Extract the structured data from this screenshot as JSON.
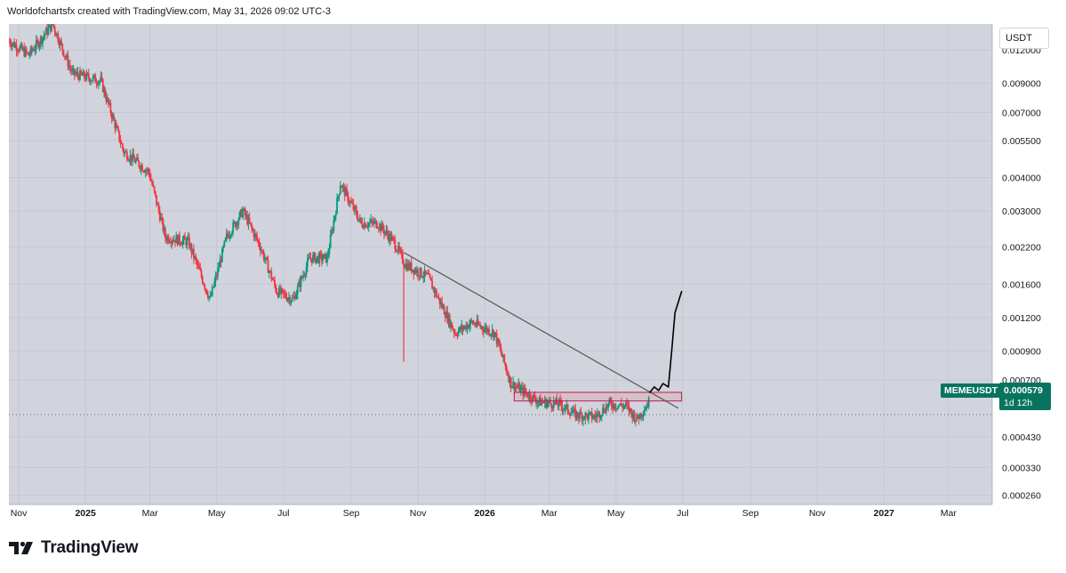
{
  "header": {
    "caption": "Worldofchartsfx created with TradingView.com, May 31, 2026 09:02 UTC-3"
  },
  "footer": {
    "brand": "TradingView",
    "logo_icon": "tradingview-logo-icon"
  },
  "colors": {
    "plot_bg": "#d1d4dc",
    "up": "#089981",
    "down": "#f23645",
    "tag_bg": "#08745f",
    "trendline": "#555555",
    "drawing": "#000000"
  },
  "chart_data": {
    "type": "candlestick",
    "symbol": "MEMEUSDT",
    "currency_label": "USDT",
    "last_price": "0.000579",
    "countdown": "1d 12h",
    "scale": "log",
    "ylim": [
      0.00024,
      0.015
    ],
    "y_ticks": [
      "0.012000",
      "0.009000",
      "0.007000",
      "0.005500",
      "0.004000",
      "0.003000",
      "0.002200",
      "0.001600",
      "0.001200",
      "0.000900",
      "0.000700",
      "0.000430",
      "0.000330",
      "0.000260"
    ],
    "x_ticks": [
      {
        "label": "Nov",
        "date": "2024-11-01"
      },
      {
        "label": "2025",
        "date": "2025-01-01",
        "bold": true
      },
      {
        "label": "Mar",
        "date": "2025-03-01"
      },
      {
        "label": "May",
        "date": "2025-05-01"
      },
      {
        "label": "Jul",
        "date": "2025-07-01"
      },
      {
        "label": "Sep",
        "date": "2025-09-01"
      },
      {
        "label": "Nov",
        "date": "2025-11-01"
      },
      {
        "label": "2026",
        "date": "2026-01-01",
        "bold": true
      },
      {
        "label": "Mar",
        "date": "2026-03-01"
      },
      {
        "label": "May",
        "date": "2026-05-01"
      },
      {
        "label": "Jul",
        "date": "2026-07-01"
      },
      {
        "label": "Sep",
        "date": "2026-09-01"
      },
      {
        "label": "Nov",
        "date": "2026-11-01"
      },
      {
        "label": "2027",
        "date": "2027-01-01",
        "bold": true
      },
      {
        "label": "Mar",
        "date": "2027-03-01"
      }
    ],
    "xlim": [
      "2024-10-23",
      "2027-04-10"
    ],
    "path_points": [
      [
        "2024-10-23",
        0.013
      ],
      [
        "2024-11-10",
        0.0115
      ],
      [
        "2024-12-02",
        0.015
      ],
      [
        "2024-12-20",
        0.0098
      ],
      [
        "2025-01-15",
        0.0092
      ],
      [
        "2025-02-05",
        0.005
      ],
      [
        "2025-02-28",
        0.0042
      ],
      [
        "2025-03-15",
        0.0024
      ],
      [
        "2025-04-05",
        0.0023
      ],
      [
        "2025-04-25",
        0.0014
      ],
      [
        "2025-05-10",
        0.0024
      ],
      [
        "2025-05-25",
        0.003
      ],
      [
        "2025-06-10",
        0.0022
      ],
      [
        "2025-06-25",
        0.0015
      ],
      [
        "2025-07-10",
        0.0014
      ],
      [
        "2025-07-25",
        0.002
      ],
      [
        "2025-08-10",
        0.002
      ],
      [
        "2025-08-22",
        0.0038
      ],
      [
        "2025-09-10",
        0.0027
      ],
      [
        "2025-09-25",
        0.0027
      ],
      [
        "2025-10-10",
        0.0023
      ],
      [
        "2025-10-20",
        0.0019
      ],
      [
        "2025-11-10",
        0.0017
      ],
      [
        "2025-12-05",
        0.00105
      ],
      [
        "2025-12-20",
        0.00115
      ],
      [
        "2026-01-10",
        0.00105
      ],
      [
        "2026-01-25",
        0.00068
      ],
      [
        "2026-02-20",
        0.00058
      ],
      [
        "2026-03-10",
        0.00057
      ],
      [
        "2026-03-25",
        0.00052
      ],
      [
        "2026-04-12",
        0.00051
      ],
      [
        "2026-04-25",
        0.00057
      ],
      [
        "2026-05-10",
        0.00056
      ],
      [
        "2026-05-20",
        0.0005
      ],
      [
        "2026-05-31",
        0.000579
      ]
    ],
    "wick_notes": [
      {
        "date": "2025-10-19",
        "low": 0.00082
      }
    ],
    "trendline": {
      "from": [
        "2025-10-19",
        0.0021
      ],
      "to": [
        "2026-06-27",
        0.00055
      ]
    },
    "zone": {
      "from": "2026-01-28",
      "to": "2026-06-30",
      "top": 0.00063,
      "bottom": 0.000585
    },
    "projection": [
      [
        "2026-06-01",
        0.00063
      ],
      [
        "2026-06-05",
        0.00066
      ],
      [
        "2026-06-09",
        0.00064
      ],
      [
        "2026-06-13",
        0.00068
      ],
      [
        "2026-06-18",
        0.00066
      ],
      [
        "2026-06-21",
        0.0009
      ],
      [
        "2026-06-24",
        0.00125
      ],
      [
        "2026-06-30",
        0.0015
      ]
    ]
  }
}
